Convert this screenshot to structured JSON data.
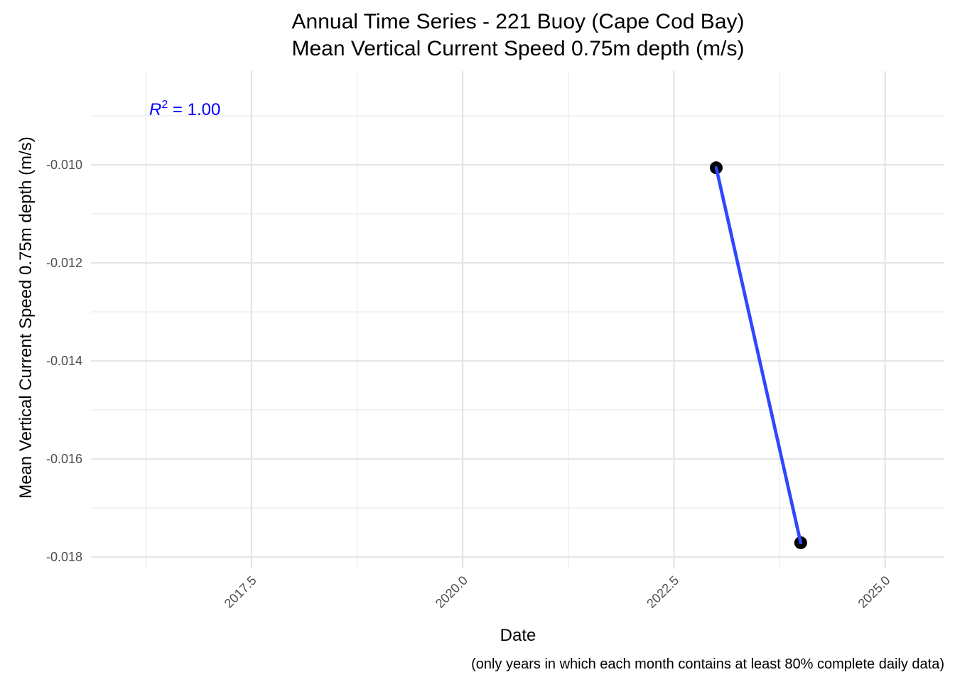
{
  "chart_data": {
    "type": "line",
    "title_line1": "Annual Time Series - 221 Buoy (Cape Cod Bay)",
    "title_line2": "Mean Vertical Current Speed 0.75m depth (m/s)",
    "xlabel": "Date",
    "ylabel": "Mean Vertical Current Speed 0.75m depth (m/s)",
    "caption": "(only years in which each month contains at least 80% complete daily data)",
    "annotation": {
      "label": "R",
      "superscript": "2",
      "value_text": " = 1.00",
      "color": "#0000ff"
    },
    "xlim": [
      2015.6,
      2025.7
    ],
    "ylim": [
      -0.018,
      -0.009
    ],
    "x_ticks": [
      {
        "value": 2017.5,
        "label": "2017.5"
      },
      {
        "value": 2020.0,
        "label": "2020.0"
      },
      {
        "value": 2022.5,
        "label": "2022.5"
      },
      {
        "value": 2025.0,
        "label": "2025.0"
      }
    ],
    "x_minor_ticks": [
      2016.25,
      2018.75,
      2021.25,
      2023.75
    ],
    "y_ticks": [
      {
        "value": -0.01,
        "label": "-0.010"
      },
      {
        "value": -0.012,
        "label": "-0.012"
      },
      {
        "value": -0.014,
        "label": "-0.014"
      },
      {
        "value": -0.016,
        "label": "-0.016"
      },
      {
        "value": -0.018,
        "label": "-0.018"
      }
    ],
    "y_minor_ticks": [
      -0.009,
      -0.011,
      -0.013,
      -0.015,
      -0.017
    ],
    "grid": true,
    "series": [
      {
        "points": [
          {
            "x": 2023.0,
            "y": -0.01006
          },
          {
            "x": 2024.0,
            "y": -0.01771
          }
        ],
        "point_color": "#000000",
        "line_color": "#3047ff"
      }
    ]
  }
}
